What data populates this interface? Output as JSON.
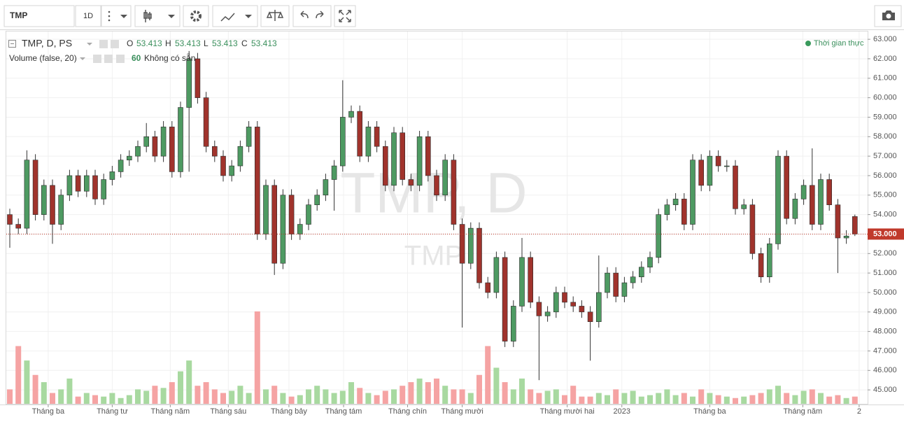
{
  "toolbar": {
    "symbol": "TMP",
    "interval": "1D"
  },
  "chart_data": {
    "type": "candlestick",
    "title": "TMP, D, PS",
    "ohlc_labels": [
      "O",
      "H",
      "L",
      "C"
    ],
    "ohlc_values": [
      "53.413",
      "53.413",
      "53.413",
      "53.413"
    ],
    "volume_title": "Volume (false, 20)",
    "volume_value": "60",
    "volume_status": "Không có sẵn",
    "realtime": "Thời gian thực",
    "watermark": "TMP, D",
    "watermark_sub": "TMP",
    "up_color": "#4e9a62",
    "down_color": "#a0332c",
    "volume_up_color": "#a8d9a0",
    "volume_down_color": "#f5a3a3",
    "grid": true,
    "ylim": [
      44.25,
      63.4
    ],
    "yticks": [
      {
        "value": 45,
        "label": "45.000"
      },
      {
        "value": 46,
        "label": "46.000"
      },
      {
        "value": 47,
        "label": "47.000"
      },
      {
        "value": 48,
        "label": "48.000"
      },
      {
        "value": 49,
        "label": "49.000"
      },
      {
        "value": 50,
        "label": "50.000"
      },
      {
        "value": 51,
        "label": "51.000"
      },
      {
        "value": 52,
        "label": "52.000"
      },
      {
        "value": 53,
        "label": "53.000"
      },
      {
        "value": 54,
        "label": "54.000"
      },
      {
        "value": 55,
        "label": "55.000"
      },
      {
        "value": 56,
        "label": "56.000"
      },
      {
        "value": 57,
        "label": "57.000"
      },
      {
        "value": 58,
        "label": "58.000"
      },
      {
        "value": 59,
        "label": "59.000"
      },
      {
        "value": 60,
        "label": "60.000"
      },
      {
        "value": 61,
        "label": "61.000"
      },
      {
        "value": 62,
        "label": "62.000"
      },
      {
        "value": 63,
        "label": "63.000"
      }
    ],
    "last_price": {
      "value": 53,
      "label": "53.000"
    },
    "xticks": [
      {
        "value": 4.5,
        "label": "Tháng ba"
      },
      {
        "value": 12,
        "label": "Tháng tư"
      },
      {
        "value": 18.8,
        "label": "Tháng năm"
      },
      {
        "value": 25.6,
        "label": "Tháng sáu"
      },
      {
        "value": 32.7,
        "label": "Tháng bảy"
      },
      {
        "value": 39.1,
        "label": "Tháng tám"
      },
      {
        "value": 46.6,
        "label": "Tháng chín"
      },
      {
        "value": 53,
        "label": "Tháng mười"
      },
      {
        "value": 65.3,
        "label": "Tháng mười hai"
      },
      {
        "value": 71.7,
        "label": "2023"
      },
      {
        "value": 82,
        "label": "Tháng ba"
      },
      {
        "value": 92.9,
        "label": "Tháng năm"
      },
      {
        "value": 99.5,
        "label": "2"
      }
    ],
    "open": [
      54.0,
      53.5,
      53.3,
      56.8,
      54.0,
      55.5,
      53.5,
      55.0,
      56.0,
      55.2,
      56.0,
      54.8,
      55.8,
      56.2,
      56.8,
      57.0,
      57.5,
      58.0,
      57.0,
      58.5,
      56.2,
      59.5,
      62.0,
      60.0,
      57.5,
      57.0,
      56.0,
      56.5,
      57.5,
      58.5,
      53.0,
      55.5,
      51.5,
      55.0,
      53.0,
      53.5,
      54.5,
      55.0,
      55.8,
      56.5,
      59.0,
      59.3,
      57.0,
      58.5,
      57.5,
      55.5,
      58.2,
      55.8,
      55.5,
      58.0,
      56.0,
      55.0,
      56.8,
      53.5,
      51.5,
      53.3,
      50.5,
      50.0,
      51.8,
      47.5,
      49.3,
      51.8,
      49.5,
      48.8,
      49.0,
      50.0,
      49.5,
      49.3,
      49.0,
      48.5,
      50.0,
      51.0,
      49.8,
      50.5,
      50.8,
      51.3,
      51.8,
      54.0,
      54.5,
      54.8,
      53.5,
      56.8,
      55.5,
      57.0,
      56.5,
      56.5,
      54.3,
      54.5,
      52.0,
      50.8,
      52.5,
      57.0,
      53.8,
      54.8,
      55.5,
      53.5,
      55.8,
      54.5,
      52.8,
      53.9
    ],
    "high": [
      54.3,
      53.8,
      57.3,
      57.1,
      55.8,
      55.8,
      55.3,
      56.3,
      56.3,
      56.3,
      56.3,
      56.1,
      56.5,
      57.1,
      57.3,
      57.8,
      58.7,
      58.3,
      58.8,
      58.8,
      59.8,
      62.4,
      62.3,
      60.3,
      57.8,
      57.3,
      56.8,
      57.8,
      58.8,
      58.8,
      55.8,
      55.8,
      55.3,
      55.3,
      53.8,
      54.8,
      55.3,
      56.1,
      56.8,
      60.9,
      59.6,
      59.6,
      58.8,
      58.8,
      57.8,
      58.5,
      58.5,
      56.1,
      58.3,
      58.3,
      56.3,
      57.1,
      57.1,
      53.8,
      53.6,
      53.6,
      50.8,
      52.1,
      52.1,
      49.6,
      52.8,
      52.1,
      49.8,
      49.3,
      50.3,
      50.3,
      49.8,
      49.6,
      49.3,
      51.9,
      51.3,
      51.3,
      50.8,
      51.1,
      51.6,
      52.1,
      54.3,
      54.8,
      55.1,
      55.1,
      57.1,
      57.1,
      57.3,
      57.3,
      56.8,
      56.8,
      54.8,
      54.8,
      52.3,
      52.8,
      57.3,
      57.3,
      55.1,
      55.8,
      57.4,
      56.1,
      56.1,
      54.8,
      53.2,
      54.0
    ],
    "low": [
      52.3,
      53.0,
      53.0,
      53.7,
      53.7,
      52.5,
      53.2,
      54.7,
      54.9,
      54.9,
      54.5,
      54.5,
      55.5,
      55.9,
      56.5,
      56.7,
      57.2,
      56.7,
      56.7,
      55.9,
      55.9,
      56.2,
      59.7,
      57.2,
      56.7,
      55.7,
      55.7,
      56.2,
      57.2,
      52.7,
      52.7,
      50.9,
      51.2,
      52.7,
      52.7,
      53.2,
      54.2,
      54.7,
      54.2,
      56.2,
      58.7,
      56.7,
      56.7,
      57.2,
      55.2,
      55.2,
      55.5,
      55.2,
      55.2,
      55.7,
      54.7,
      54.7,
      53.2,
      48.2,
      51.2,
      50.2,
      49.7,
      49.7,
      47.2,
      47.2,
      49.0,
      49.2,
      45.5,
      48.5,
      48.7,
      49.2,
      49.0,
      48.7,
      46.5,
      48.2,
      49.7,
      49.5,
      49.5,
      50.2,
      50.5,
      51.0,
      51.5,
      53.7,
      54.2,
      53.2,
      53.2,
      55.2,
      55.2,
      56.2,
      56.2,
      54.0,
      54.0,
      51.7,
      50.5,
      50.5,
      52.2,
      53.5,
      53.5,
      54.5,
      53.2,
      53.2,
      54.2,
      51.0,
      52.5,
      52.9
    ],
    "close": [
      53.5,
      53.3,
      56.8,
      54.0,
      55.5,
      53.5,
      55.0,
      56.0,
      55.2,
      56.0,
      54.8,
      55.8,
      56.2,
      56.8,
      57.0,
      57.5,
      58.0,
      57.0,
      58.5,
      56.2,
      59.5,
      62.0,
      60.0,
      57.5,
      57.0,
      56.0,
      56.5,
      57.5,
      58.5,
      53.0,
      55.5,
      51.5,
      55.0,
      53.0,
      53.5,
      54.5,
      55.0,
      55.8,
      56.5,
      59.0,
      59.3,
      57.0,
      58.5,
      57.5,
      55.5,
      58.2,
      55.8,
      55.5,
      58.0,
      56.0,
      55.0,
      56.8,
      53.5,
      51.5,
      53.3,
      50.5,
      50.0,
      51.8,
      47.5,
      49.3,
      51.8,
      49.5,
      48.8,
      49.0,
      50.0,
      49.5,
      49.3,
      49.0,
      48.5,
      50.0,
      51.0,
      49.8,
      50.5,
      50.8,
      51.3,
      51.8,
      54.0,
      54.5,
      54.8,
      53.5,
      56.8,
      55.5,
      57.0,
      56.5,
      56.5,
      54.3,
      54.5,
      52.0,
      50.8,
      52.5,
      57.0,
      53.8,
      54.8,
      55.5,
      53.5,
      55.8,
      54.5,
      52.8,
      52.9,
      53.0
    ],
    "volume": [
      20,
      80,
      60,
      40,
      30,
      15,
      20,
      35,
      10,
      15,
      12,
      10,
      15,
      8,
      12,
      20,
      18,
      25,
      22,
      30,
      45,
      60,
      25,
      30,
      20,
      15,
      18,
      25,
      15,
      128,
      20,
      25,
      15,
      10,
      12,
      20,
      25,
      20,
      15,
      18,
      30,
      22,
      15,
      12,
      18,
      20,
      25,
      30,
      35,
      30,
      35,
      25,
      20,
      20,
      15,
      40,
      80,
      50,
      30,
      20,
      35,
      20,
      15,
      18,
      20,
      12,
      25,
      10,
      10,
      15,
      12,
      20,
      15,
      18,
      10,
      12,
      15,
      20,
      12,
      15,
      10,
      20,
      15,
      12,
      10,
      8,
      10,
      12,
      15,
      20,
      25,
      15,
      12,
      18,
      20,
      15,
      10,
      12,
      8,
      10
    ]
  }
}
